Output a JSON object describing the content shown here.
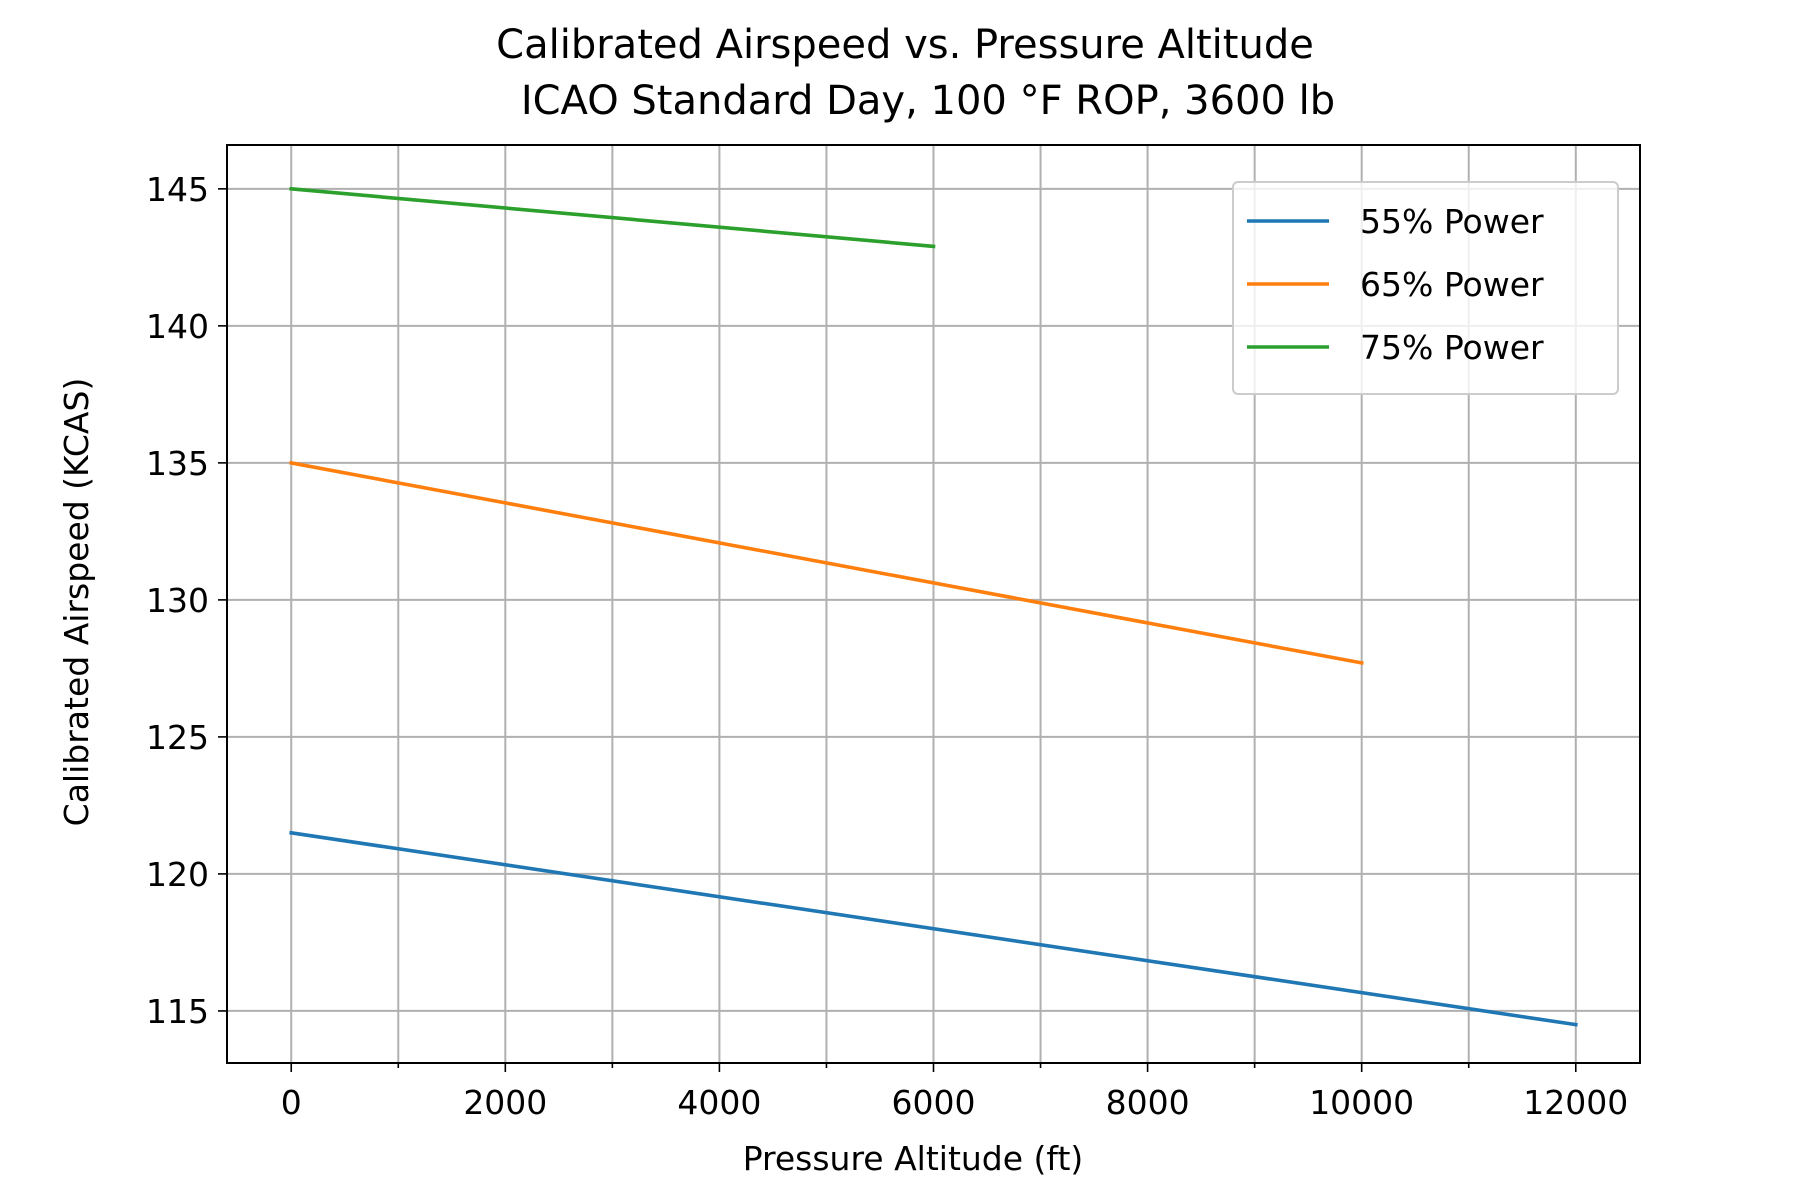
{
  "chart_data": {
    "type": "line",
    "title": "Calibrated Airspeed vs. Pressure Altitude",
    "subtitle": "ICAO Standard Day, 100 °F ROP, 3600 lb",
    "xlabel": "Pressure Altitude (ft)",
    "ylabel": "Calibrated Airspeed (KCAS)",
    "xlim": [
      -600,
      12600
    ],
    "ylim": [
      113.1,
      146.6
    ],
    "xticks": [
      0,
      2000,
      4000,
      6000,
      8000,
      10000,
      12000
    ],
    "xticks_minor": [
      1000,
      3000,
      5000,
      7000,
      9000,
      11000
    ],
    "yticks": [
      115,
      120,
      125,
      130,
      135,
      140,
      145
    ],
    "grid": true,
    "legend_position": "top-right",
    "series": [
      {
        "name": "55% Power",
        "color": "#1f77b4",
        "x": [
          0,
          12000
        ],
        "y": [
          121.5,
          114.5
        ]
      },
      {
        "name": "65% Power",
        "color": "#ff7f0e",
        "x": [
          0,
          10000
        ],
        "y": [
          135.0,
          127.7
        ]
      },
      {
        "name": "75% Power",
        "color": "#2ca02c",
        "x": [
          0,
          6000
        ],
        "y": [
          145.0,
          142.9
        ]
      }
    ]
  }
}
